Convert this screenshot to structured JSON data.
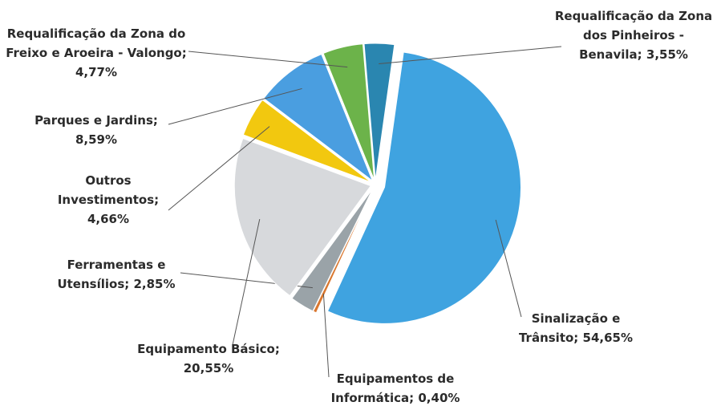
{
  "chart_data": {
    "type": "pie",
    "categories": [
      "Sinalização e Trânsito;",
      "Equipamentos de Informática;",
      "Ferramentas e Utensílios;",
      "Equipamento Básico;",
      "Outros Investimentos;",
      "Parques e Jardins;",
      "Requalificação da Zona do Freixo e Aroeira - Valongo;",
      "Requalificação da Zona dos Pinheiros - Benavila;"
    ],
    "values": [
      54.65,
      0.4,
      2.85,
      20.55,
      4.66,
      8.59,
      4.77,
      3.55
    ],
    "value_labels": [
      "54,65%",
      "0,40%",
      "2,85%",
      "20,55%",
      "4,66%",
      "8,59%",
      "4,77%",
      "3,55%"
    ],
    "colors": [
      "#3fa3e0",
      "#d9772f",
      "#9aa3a8",
      "#d7d9dc",
      "#f2c80f",
      "#4a9ee0",
      "#6cb34a",
      "#2a86b0"
    ]
  }
}
